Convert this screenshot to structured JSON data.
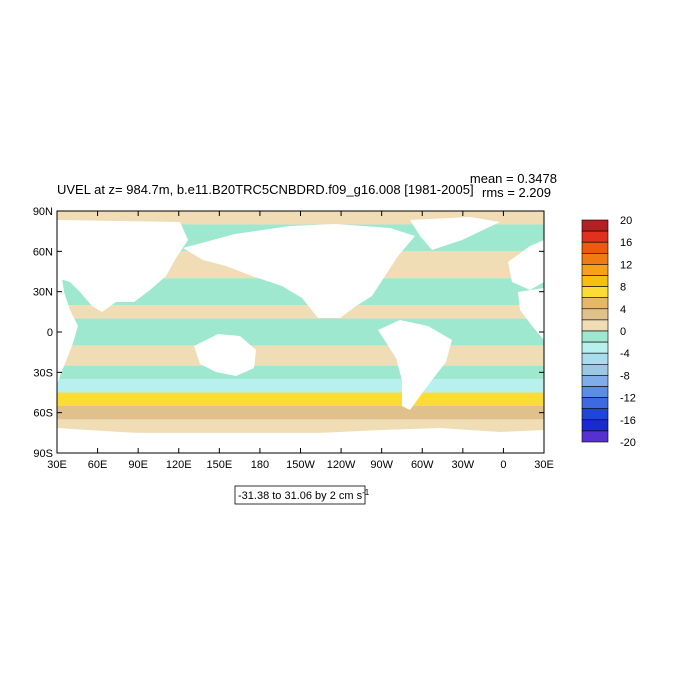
{
  "chart_data": {
    "type": "heatmap",
    "title": "UVEL at z= 984.7m, b.e11.B20TRC5CNBDRD.f09_g16.008 [1981-2005]",
    "stats": {
      "mean": "mean = 0.3478",
      "rms": "rms = 2.209"
    },
    "x_ticks": [
      "30E",
      "60E",
      "90E",
      "120E",
      "150E",
      "180",
      "150W",
      "120W",
      "90W",
      "60W",
      "30W",
      "0",
      "30E"
    ],
    "y_ticks": [
      "90N",
      "60N",
      "30N",
      "0",
      "30S",
      "60S",
      "90S"
    ],
    "xlim": [
      30,
      390
    ],
    "ylim": [
      -90,
      90
    ],
    "contour_info": "-31.38 to 31.06 by 2 cm s",
    "contour_info_unit_exp": "-1",
    "colorbar": {
      "labels": [
        "20",
        "16",
        "12",
        "8",
        "4",
        "0",
        "-4",
        "-8",
        "-12",
        "-16",
        "-20"
      ],
      "levels": [
        20,
        18,
        16,
        14,
        12,
        10,
        8,
        6,
        4,
        2,
        0,
        -2,
        -4,
        -6,
        -8,
        -10,
        -12,
        -14,
        -16,
        -18,
        -20
      ],
      "colors": [
        "#b22222",
        "#e0301e",
        "#ee5a0a",
        "#f07b12",
        "#f7a01a",
        "#f8c00e",
        "#fbdc34",
        "#e8b668",
        "#e0c18b",
        "#f0ddb5",
        "#9ee8d0",
        "#b8f0ee",
        "#a8ddee",
        "#9cc8e4",
        "#7fadea",
        "#5a8ee6",
        "#3d6ae0",
        "#1f46d6",
        "#1a2ad0",
        "#5630d0"
      ]
    },
    "approx_zonal_bands": [
      {
        "lat": [
          80,
          90
        ],
        "value": 1
      },
      {
        "lat": [
          60,
          80
        ],
        "value": -1
      },
      {
        "lat": [
          40,
          60
        ],
        "value": 1
      },
      {
        "lat": [
          20,
          40
        ],
        "value": -1
      },
      {
        "lat": [
          10,
          20
        ],
        "value": 1
      },
      {
        "lat": [
          -10,
          10
        ],
        "value": -1
      },
      {
        "lat": [
          -25,
          -10
        ],
        "value": 1
      },
      {
        "lat": [
          -35,
          -25
        ],
        "value": -1
      },
      {
        "lat": [
          -45,
          -35
        ],
        "value": -2
      },
      {
        "lat": [
          -55,
          -45
        ],
        "value": 8
      },
      {
        "lat": [
          -65,
          -55
        ],
        "value": 3
      },
      {
        "lat": [
          -75,
          -65
        ],
        "value": 1
      }
    ]
  }
}
